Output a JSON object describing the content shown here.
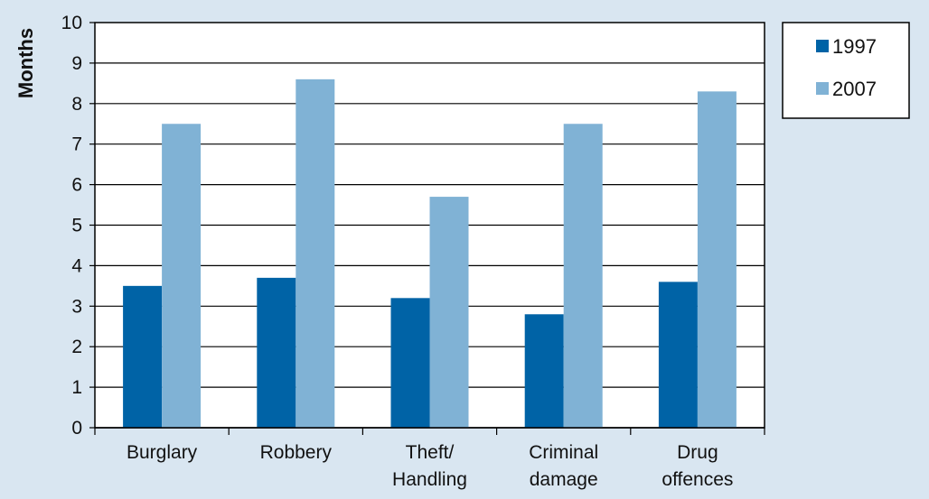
{
  "chart_data": {
    "type": "bar",
    "ylabel": "Months",
    "xlabel": "",
    "ylim": [
      0,
      10
    ],
    "yticks": [
      0,
      1,
      2,
      3,
      4,
      5,
      6,
      7,
      8,
      9,
      10
    ],
    "categories": [
      [
        "Burglary"
      ],
      [
        "Robbery"
      ],
      [
        "Theft/",
        "Handling"
      ],
      [
        "Criminal",
        "damage"
      ],
      [
        "Drug",
        "offences"
      ]
    ],
    "series": [
      {
        "name": "1997",
        "color": "#0063a6",
        "values": [
          3.5,
          3.7,
          3.2,
          2.8,
          3.6
        ]
      },
      {
        "name": "2007",
        "color": "#80b2d5",
        "values": [
          7.5,
          8.6,
          5.7,
          7.5,
          8.3
        ]
      }
    ],
    "grid": true,
    "legend_position": "top-right"
  }
}
